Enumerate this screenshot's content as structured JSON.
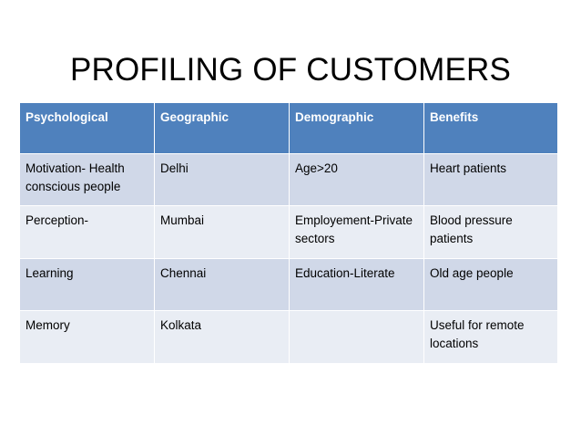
{
  "slide": {
    "title": "PROFILING OF CUSTOMERS"
  },
  "table": {
    "headers": [
      "Psychological",
      "Geographic",
      "Demographic",
      "Benefits"
    ],
    "rows": [
      [
        "Motivation- Health conscious people",
        "Delhi",
        "Age>20",
        "Heart patients"
      ],
      [
        "Perception-",
        "Mumbai",
        "Employement-Private sectors",
        "Blood pressure patients"
      ],
      [
        "Learning",
        "Chennai",
        "Education-Literate",
        "Old age people"
      ],
      [
        "Memory",
        "Kolkata",
        "",
        "Useful for remote locations"
      ]
    ],
    "colors": {
      "header_bg": "#4f81bd",
      "header_text": "#ffffff",
      "row_band_dark": "#d0d8e8",
      "row_band_light": "#e9edf4"
    }
  }
}
